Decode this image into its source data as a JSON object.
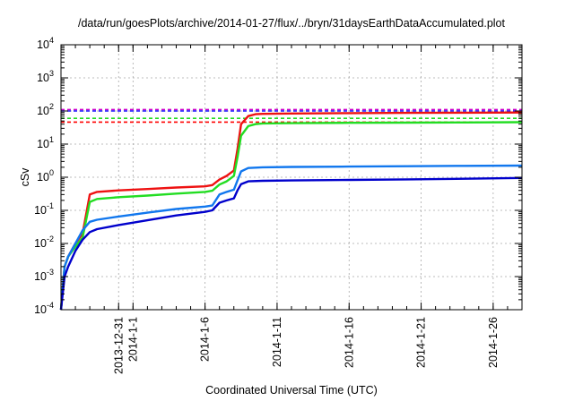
{
  "chart_data": {
    "type": "line",
    "title": "/data/run/goesPlots/archive/2014-01-27/flux/../bryn/31daysEarthDataAccumulated.plot",
    "xlabel": "Coordinated Universal Time (UTC)",
    "ylabel": "cSv",
    "y_scale": "log",
    "ylim": [
      0.0001,
      10000
    ],
    "xlim": [
      "2013-12-27",
      "2014-01-28"
    ],
    "grid": true,
    "legend": "none",
    "x_ticks": [
      {
        "x": "2013-12-31",
        "label": "2013-12-31"
      },
      {
        "x": "2014-01-01",
        "label": "2014-1-1"
      },
      {
        "x": "2014-01-06",
        "label": "2014-1-6"
      },
      {
        "x": "2014-01-11",
        "label": "2014-1-11"
      },
      {
        "x": "2014-01-16",
        "label": "2014-1-16"
      },
      {
        "x": "2014-01-21",
        "label": "2014-1-21"
      },
      {
        "x": "2014-01-26",
        "label": "2014-1-26"
      }
    ],
    "y_ticks": [
      {
        "v": 0.0001,
        "base": "10",
        "exp": "-4"
      },
      {
        "v": 0.001,
        "base": "10",
        "exp": "-3"
      },
      {
        "v": 0.01,
        "base": "10",
        "exp": "-2"
      },
      {
        "v": 0.1,
        "base": "10",
        "exp": "-1"
      },
      {
        "v": 1,
        "base": "10",
        "exp": "0"
      },
      {
        "v": 10,
        "base": "10",
        "exp": "1"
      },
      {
        "v": 100,
        "base": "10",
        "exp": "2"
      },
      {
        "v": 1000,
        "base": "10",
        "exp": "3"
      },
      {
        "v": 10000,
        "base": "10",
        "exp": "4"
      }
    ],
    "thresholds": [
      {
        "color": "#cc00cc",
        "value": 110
      },
      {
        "color": "#1a1aff",
        "value": 100
      },
      {
        "color": "#22dd22",
        "value": 60
      },
      {
        "color": "#ff0000",
        "value": 46
      }
    ],
    "series": [
      {
        "color": "#ee1111",
        "points": [
          [
            "2013-12-27T00:00",
            0.0001
          ],
          [
            "2013-12-27T06:00",
            0.002
          ],
          [
            "2013-12-27T12:00",
            0.004
          ],
          [
            "2013-12-28T00:00",
            0.01
          ],
          [
            "2013-12-28T12:00",
            0.02
          ],
          [
            "2013-12-29T00:00",
            0.3
          ],
          [
            "2013-12-29T12:00",
            0.36
          ],
          [
            "2013-12-31T00:00",
            0.4
          ],
          [
            "2014-01-02T00:00",
            0.44
          ],
          [
            "2014-01-04T00:00",
            0.49
          ],
          [
            "2014-01-06T00:00",
            0.53
          ],
          [
            "2014-01-06T12:00",
            0.58
          ],
          [
            "2014-01-07T00:00",
            0.85
          ],
          [
            "2014-01-07T12:00",
            1.1
          ],
          [
            "2014-01-08T00:00",
            1.6
          ],
          [
            "2014-01-08T06:00",
            7
          ],
          [
            "2014-01-08T12:00",
            40
          ],
          [
            "2014-01-09T00:00",
            70
          ],
          [
            "2014-01-09T12:00",
            80
          ],
          [
            "2014-01-10T00:00",
            82
          ],
          [
            "2014-01-12T00:00",
            84
          ],
          [
            "2014-01-16T00:00",
            86
          ],
          [
            "2014-01-20T00:00",
            88
          ],
          [
            "2014-01-24T00:00",
            89
          ],
          [
            "2014-01-28T00:00",
            90
          ]
        ]
      },
      {
        "color": "#22dd22",
        "points": [
          [
            "2013-12-27T00:00",
            0.0001
          ],
          [
            "2013-12-27T06:00",
            0.002
          ],
          [
            "2013-12-27T12:00",
            0.004
          ],
          [
            "2013-12-28T00:00",
            0.008
          ],
          [
            "2013-12-28T12:00",
            0.015
          ],
          [
            "2013-12-29T00:00",
            0.18
          ],
          [
            "2013-12-29T12:00",
            0.22
          ],
          [
            "2013-12-31T00:00",
            0.25
          ],
          [
            "2014-01-02T00:00",
            0.28
          ],
          [
            "2014-01-04T00:00",
            0.32
          ],
          [
            "2014-01-06T00:00",
            0.36
          ],
          [
            "2014-01-06T12:00",
            0.39
          ],
          [
            "2014-01-07T00:00",
            0.6
          ],
          [
            "2014-01-07T12:00",
            0.75
          ],
          [
            "2014-01-08T00:00",
            1.1
          ],
          [
            "2014-01-08T06:00",
            4
          ],
          [
            "2014-01-08T12:00",
            18
          ],
          [
            "2014-01-09T00:00",
            35
          ],
          [
            "2014-01-09T12:00",
            40
          ],
          [
            "2014-01-10T00:00",
            42
          ],
          [
            "2014-01-12T00:00",
            43
          ],
          [
            "2014-01-16T00:00",
            44
          ],
          [
            "2014-01-20T00:00",
            44.5
          ],
          [
            "2014-01-24T00:00",
            45
          ],
          [
            "2014-01-28T00:00",
            46
          ]
        ]
      },
      {
        "color": "#1177ee",
        "points": [
          [
            "2013-12-27T00:00",
            0.0001
          ],
          [
            "2013-12-27T06:00",
            0.002
          ],
          [
            "2013-12-27T12:00",
            0.004
          ],
          [
            "2013-12-28T00:00",
            0.01
          ],
          [
            "2013-12-28T12:00",
            0.025
          ],
          [
            "2013-12-29T00:00",
            0.045
          ],
          [
            "2013-12-29T12:00",
            0.052
          ],
          [
            "2013-12-31T00:00",
            0.065
          ],
          [
            "2014-01-02T00:00",
            0.085
          ],
          [
            "2014-01-04T00:00",
            0.11
          ],
          [
            "2014-01-06T00:00",
            0.13
          ],
          [
            "2014-01-06T12:00",
            0.14
          ],
          [
            "2014-01-07T00:00",
            0.3
          ],
          [
            "2014-01-07T12:00",
            0.36
          ],
          [
            "2014-01-08T00:00",
            0.42
          ],
          [
            "2014-01-08T06:00",
            0.8
          ],
          [
            "2014-01-08T12:00",
            1.5
          ],
          [
            "2014-01-09T00:00",
            1.9
          ],
          [
            "2014-01-10T00:00",
            2.0
          ],
          [
            "2014-01-12T00:00",
            2.05
          ],
          [
            "2014-01-16T00:00",
            2.1
          ],
          [
            "2014-01-20T00:00",
            2.15
          ],
          [
            "2014-01-24T00:00",
            2.2
          ],
          [
            "2014-01-28T00:00",
            2.25
          ]
        ]
      },
      {
        "color": "#0000cc",
        "points": [
          [
            "2013-12-27T00:00",
            0.0001
          ],
          [
            "2013-12-27T06:00",
            0.001
          ],
          [
            "2013-12-27T12:00",
            0.002
          ],
          [
            "2013-12-28T00:00",
            0.006
          ],
          [
            "2013-12-28T12:00",
            0.013
          ],
          [
            "2013-12-29T00:00",
            0.022
          ],
          [
            "2013-12-29T12:00",
            0.027
          ],
          [
            "2013-12-31T00:00",
            0.036
          ],
          [
            "2014-01-02T00:00",
            0.05
          ],
          [
            "2014-01-04T00:00",
            0.07
          ],
          [
            "2014-01-06T00:00",
            0.09
          ],
          [
            "2014-01-06T12:00",
            0.1
          ],
          [
            "2014-01-07T00:00",
            0.17
          ],
          [
            "2014-01-07T12:00",
            0.2
          ],
          [
            "2014-01-08T00:00",
            0.23
          ],
          [
            "2014-01-08T06:00",
            0.4
          ],
          [
            "2014-01-08T12:00",
            0.62
          ],
          [
            "2014-01-09T00:00",
            0.75
          ],
          [
            "2014-01-10T00:00",
            0.78
          ],
          [
            "2014-01-12T00:00",
            0.8
          ],
          [
            "2014-01-16T00:00",
            0.83
          ],
          [
            "2014-01-20T00:00",
            0.86
          ],
          [
            "2014-01-24T00:00",
            0.9
          ],
          [
            "2014-01-28T00:00",
            0.95
          ]
        ]
      }
    ]
  }
}
